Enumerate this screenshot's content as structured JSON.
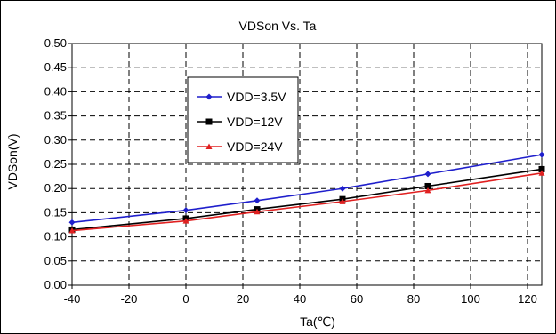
{
  "chart_data": {
    "type": "line",
    "title": "VDSon Vs. Ta",
    "xlabel": "Ta(℃)",
    "ylabel": "VDSon(V)",
    "xlim": [
      -40,
      125
    ],
    "ylim": [
      0,
      0.5
    ],
    "xticks": [
      -40,
      -20,
      0,
      20,
      40,
      60,
      80,
      100,
      120
    ],
    "xtick_labels": [
      "-40",
      "-20",
      "0",
      "20",
      "40",
      "60",
      "80",
      "100",
      "120"
    ],
    "yticks": [
      0,
      0.05,
      0.1,
      0.15,
      0.2,
      0.25,
      0.3,
      0.35,
      0.4,
      0.45,
      0.5
    ],
    "ytick_labels": [
      "0.00",
      "0.05",
      "0.10",
      "0.15",
      "0.20",
      "0.25",
      "0.30",
      "0.35",
      "0.40",
      "0.45",
      "0.50"
    ],
    "grid": "dashed",
    "legend_position": "upper-left-center",
    "x": [
      -40,
      0,
      25,
      55,
      85,
      125
    ],
    "series": [
      {
        "name": "VDD=3.5V",
        "color": "#1f1fcc",
        "marker": "diamond",
        "values": [
          0.13,
          0.155,
          0.175,
          0.2,
          0.23,
          0.27
        ]
      },
      {
        "name": "VDD=12V",
        "color": "#000000",
        "marker": "square",
        "values": [
          0.115,
          0.138,
          0.157,
          0.178,
          0.205,
          0.24
        ]
      },
      {
        "name": "VDD=24V",
        "color": "#e02020",
        "marker": "triangle",
        "values": [
          0.113,
          0.133,
          0.152,
          0.173,
          0.196,
          0.232
        ]
      }
    ]
  }
}
